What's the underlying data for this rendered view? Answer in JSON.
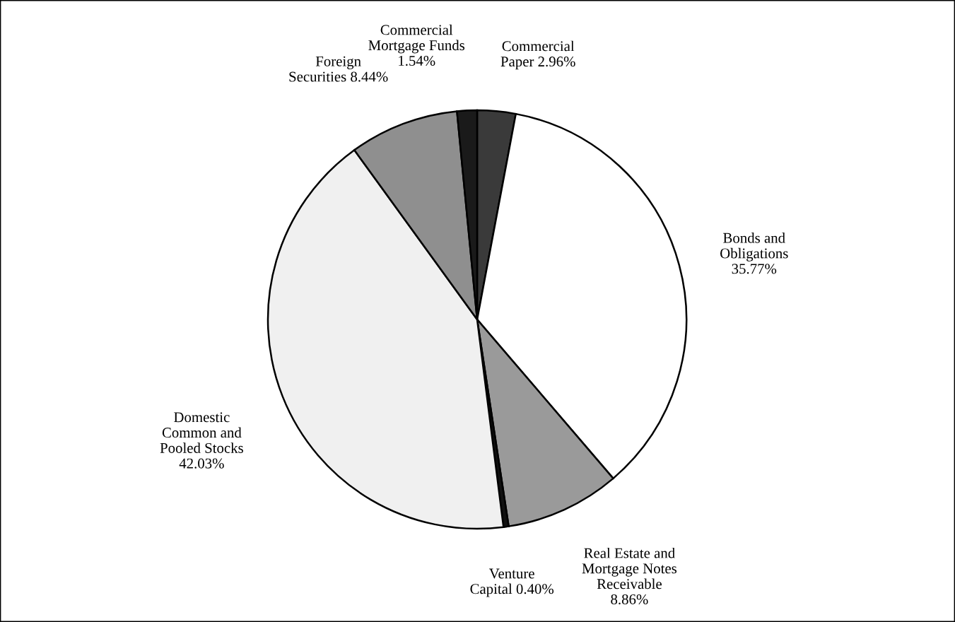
{
  "chart_data": {
    "type": "pie",
    "categories": [
      "Commercial\nPaper 2.96%",
      "Bonds and\nObligations\n35.77%",
      "Real Estate and\nMortgage Notes\nReceivable\n8.86%",
      "Venture\nCapital 0.40%",
      "Domestic\nCommon and\nPooled Stocks\n42.03%",
      "Foreign\nSecurities 8.44%",
      "Commercial\nMortgage Funds\n1.54%"
    ],
    "values": [
      2.96,
      35.77,
      8.86,
      0.4,
      42.03,
      8.44,
      1.54
    ],
    "colors": [
      "#3a3a3a",
      "#ffffff",
      "#9a9a9a",
      "#111111",
      "#f0f0f0",
      "#8f8f8f",
      "#1a1a1a"
    ]
  }
}
